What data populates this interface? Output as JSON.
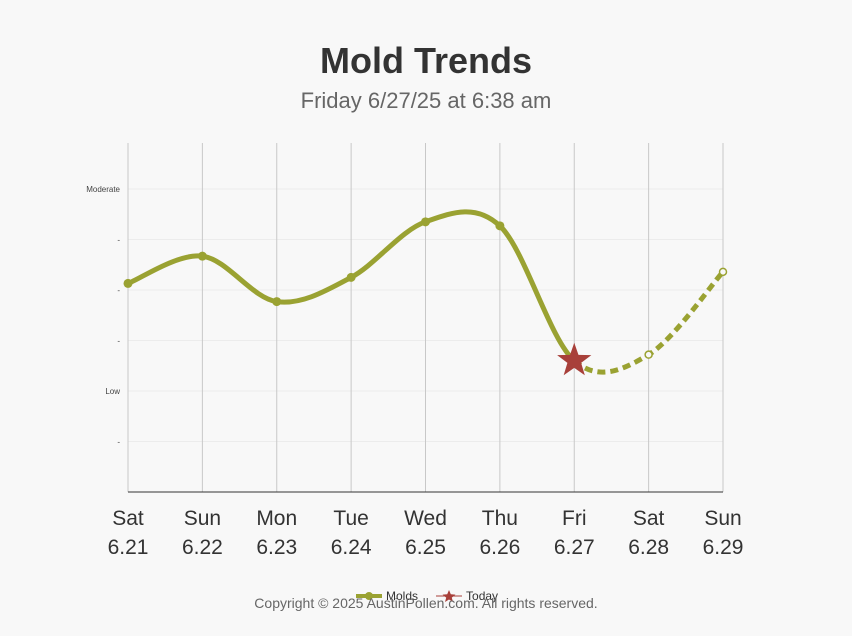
{
  "header": {
    "title": "Mold Trends",
    "subtitle": "Friday 6/27/25 at 6:38 am"
  },
  "chart_data": {
    "type": "line",
    "title": "Mold Trends",
    "subtitle": "Friday 6/27/25 at 6:38 am",
    "xlabel": "",
    "ylabel": "",
    "categories": [
      {
        "day": "Sat",
        "date": "6.21"
      },
      {
        "day": "Sun",
        "date": "6.22"
      },
      {
        "day": "Mon",
        "date": "6.23"
      },
      {
        "day": "Tue",
        "date": "6.24"
      },
      {
        "day": "Wed",
        "date": "6.25"
      },
      {
        "day": "Thu",
        "date": "6.26"
      },
      {
        "day": "Fri",
        "date": "6.27"
      },
      {
        "day": "Sat",
        "date": "6.28"
      },
      {
        "day": "Sun",
        "date": "6.29"
      }
    ],
    "ylim": [
      0,
      6
    ],
    "yticks": [
      {
        "value": 1,
        "label": "-"
      },
      {
        "value": 2,
        "label": "Low"
      },
      {
        "value": 3,
        "label": "-"
      },
      {
        "value": 4,
        "label": "-"
      },
      {
        "value": 5,
        "label": "-"
      },
      {
        "value": 6,
        "label": "Moderate"
      }
    ],
    "series": [
      {
        "name": "Molds",
        "color": "#9aa232",
        "values": [
          4.13,
          4.67,
          3.77,
          4.25,
          5.35,
          5.27,
          2.6,
          2.72,
          4.36
        ],
        "today_index": 6
      }
    ],
    "today_marker": {
      "name": "Today",
      "color": "#a8403a",
      "index": 6
    },
    "grid": true,
    "legend_position": "bottom-center"
  },
  "legend": {
    "molds_label": "Molds",
    "today_label": "Today"
  },
  "footer": {
    "copyright": "Copyright © 2025 AustinPollen.com.  All rights reserved."
  }
}
